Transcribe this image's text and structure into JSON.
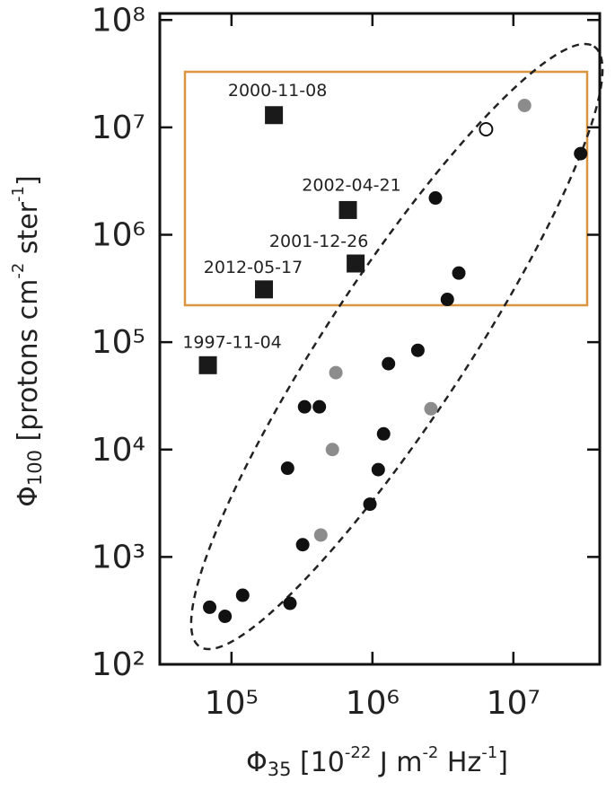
{
  "chart_data": {
    "type": "scatter",
    "xlabel": [
      "Φ",
      "35",
      " [10",
      "-22",
      " J m",
      "-2",
      " Hz",
      "-1",
      "]"
    ],
    "ylabel": [
      "Φ",
      "100",
      " [protons cm",
      "-2",
      " ster",
      "-1",
      "]"
    ],
    "xscale": "log",
    "yscale": "log",
    "xlim": [
      31000,
      41000000
    ],
    "ylim": [
      100,
      115000000
    ],
    "xticks": [
      {
        "value": 100000,
        "label": "10⁵"
      },
      {
        "value": 1000000,
        "label": "10⁶"
      },
      {
        "value": 10000000,
        "label": "10⁷"
      }
    ],
    "yticks": [
      {
        "value": 100,
        "label": "10²"
      },
      {
        "value": 1000,
        "label": "10³"
      },
      {
        "value": 10000,
        "label": "10⁴"
      },
      {
        "value": 100000,
        "label": "10⁵"
      },
      {
        "value": 1000000,
        "label": "10⁶"
      },
      {
        "value": 10000000,
        "label": "10⁷"
      },
      {
        "value": 100000000,
        "label": "10⁸"
      }
    ],
    "series": [
      {
        "marker": "square",
        "color": "#1a1a1a",
        "labels": [
          "2000-11-08",
          "2002-04-21",
          "2001-12-26",
          "2012-05-17",
          "1997-11-04"
        ],
        "x": [
          200000,
          670000,
          760000,
          170000,
          68000
        ],
        "values": [
          13000000,
          1700000,
          540000,
          310000,
          61000
        ]
      },
      {
        "marker": "circle",
        "color": "#111111",
        "x": [
          30000000,
          2800000,
          4100000,
          3400000,
          2100000,
          1300000,
          330000,
          420000,
          1200000,
          250000,
          1100000,
          960000,
          320000,
          70000,
          90000,
          120000,
          260000
        ],
        "values": [
          5700000,
          2200000,
          440000,
          250000,
          84000,
          63000,
          25000,
          25000,
          14000,
          6700,
          6500,
          3100,
          1300,
          340,
          280,
          440,
          370
        ]
      },
      {
        "marker": "circle",
        "color": "#8c8c8c",
        "x": [
          12000000,
          550000,
          2600000,
          520000,
          430000
        ],
        "values": [
          16000000,
          52000,
          24000,
          10000,
          1600
        ]
      },
      {
        "marker": "open-circle",
        "color": "#111111",
        "x": [
          6400000
        ],
        "values": [
          9600000
        ]
      }
    ]
  }
}
